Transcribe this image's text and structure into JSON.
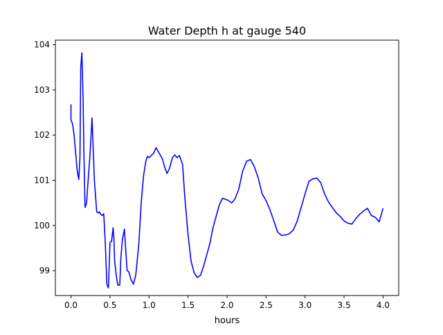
{
  "chart_data": {
    "type": "line",
    "title": "Water Depth h at gauge 540",
    "xlabel": "hours",
    "ylabel": "",
    "xlim": [
      -0.2,
      4.2
    ],
    "ylim": [
      98.45,
      104.1
    ],
    "xticks": [
      0.0,
      0.5,
      1.0,
      1.5,
      2.0,
      2.5,
      3.0,
      3.5,
      4.0
    ],
    "xtick_labels": [
      "0.0",
      "0.5",
      "1.0",
      "1.5",
      "2.0",
      "2.5",
      "3.0",
      "3.5",
      "4.0"
    ],
    "yticks": [
      99,
      100,
      101,
      102,
      103,
      104
    ],
    "ytick_labels": [
      "99",
      "100",
      "101",
      "102",
      "103",
      "104"
    ],
    "grid": false,
    "legend": "none",
    "series": [
      {
        "color": "#0000ff",
        "x": [
          0.0,
          0.0,
          0.02,
          0.04,
          0.06,
          0.08,
          0.1,
          0.115,
          0.125,
          0.14,
          0.155,
          0.168,
          0.18,
          0.2,
          0.22,
          0.245,
          0.27,
          0.3,
          0.33,
          0.355,
          0.365,
          0.38,
          0.4,
          0.42,
          0.44,
          0.46,
          0.48,
          0.5,
          0.52,
          0.54,
          0.55,
          0.56,
          0.58,
          0.6,
          0.625,
          0.64,
          0.66,
          0.685,
          0.7,
          0.72,
          0.74,
          0.77,
          0.8,
          0.83,
          0.87,
          0.9,
          0.93,
          0.96,
          0.98,
          1.0,
          1.03,
          1.06,
          1.09,
          1.13,
          1.17,
          1.2,
          1.23,
          1.26,
          1.3,
          1.33,
          1.36,
          1.39,
          1.43,
          1.46,
          1.5,
          1.54,
          1.58,
          1.62,
          1.66,
          1.7,
          1.74,
          1.78,
          1.82,
          1.86,
          1.9,
          1.94,
          1.98,
          2.02,
          2.06,
          2.1,
          2.15,
          2.2,
          2.25,
          2.3,
          2.35,
          2.4,
          2.45,
          2.5,
          2.55,
          2.6,
          2.65,
          2.7,
          2.75,
          2.8,
          2.85,
          2.9,
          2.95,
          3.0,
          3.05,
          3.1,
          3.15,
          3.2,
          3.25,
          3.3,
          3.35,
          3.4,
          3.45,
          3.5,
          3.55,
          3.6,
          3.65,
          3.7,
          3.75,
          3.8,
          3.85,
          3.9,
          3.95,
          4.0
        ],
        "y": [
          102.68,
          102.33,
          102.25,
          102.0,
          101.6,
          101.2,
          101.02,
          101.5,
          103.5,
          103.82,
          102.8,
          101.4,
          100.4,
          100.5,
          101.0,
          101.6,
          102.38,
          101.0,
          100.3,
          100.28,
          100.3,
          100.25,
          100.22,
          100.26,
          99.6,
          98.7,
          98.62,
          99.62,
          99.65,
          99.95,
          99.7,
          99.2,
          98.9,
          98.68,
          98.68,
          99.3,
          99.7,
          99.92,
          99.5,
          99.0,
          98.98,
          98.8,
          98.7,
          98.9,
          99.6,
          100.5,
          101.1,
          101.43,
          101.53,
          101.5,
          101.55,
          101.6,
          101.72,
          101.6,
          101.48,
          101.3,
          101.15,
          101.25,
          101.5,
          101.56,
          101.5,
          101.55,
          101.35,
          100.6,
          99.8,
          99.2,
          98.95,
          98.85,
          98.9,
          99.1,
          99.35,
          99.6,
          99.95,
          100.2,
          100.45,
          100.6,
          100.58,
          100.55,
          100.5,
          100.58,
          100.8,
          101.2,
          101.42,
          101.46,
          101.3,
          101.05,
          100.7,
          100.55,
          100.35,
          100.1,
          99.85,
          99.78,
          99.79,
          99.82,
          99.9,
          100.1,
          100.4,
          100.7,
          100.98,
          101.03,
          101.05,
          100.95,
          100.7,
          100.52,
          100.4,
          100.28,
          100.2,
          100.1,
          100.05,
          100.03,
          100.15,
          100.25,
          100.32,
          100.38,
          100.22,
          100.18,
          100.08,
          100.38
        ]
      }
    ]
  }
}
